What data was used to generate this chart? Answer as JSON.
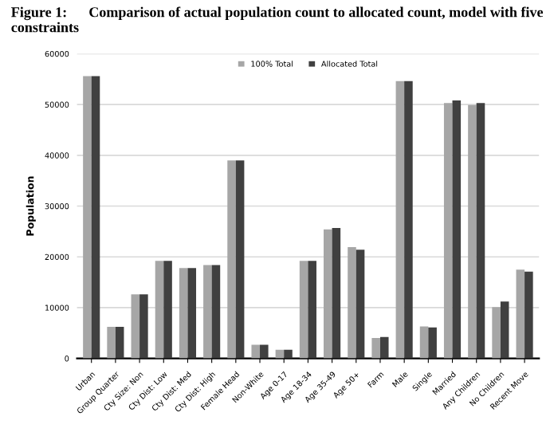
{
  "chart_data": {
    "type": "bar",
    "title": "Figure 1:      Comparison of actual population count to allocated count, model with five constraints",
    "ylabel": "Population",
    "categories": [
      "Urban",
      "Group Quarter",
      "Cty Size: Non",
      "Cty Dist: Low",
      "Cty Dist: Med",
      "Cty Dist: High",
      "Female Head",
      "Non-White",
      "Age 0-17",
      "Age 18-34",
      "Age 35-49",
      "Age 50+",
      "Farm",
      "Male",
      "Single",
      "Married",
      "Any Children",
      "No Children",
      "Recent Move"
    ],
    "series": [
      {
        "name": "100% Total",
        "color": "#a6a6a6",
        "values": [
          55600,
          6200,
          12600,
          19200,
          17800,
          18400,
          39000,
          2700,
          1700,
          19200,
          25400,
          21900,
          4000,
          54600,
          6300,
          50300,
          49900,
          10100,
          17500
        ]
      },
      {
        "name": "Allocated Total",
        "color": "#404040",
        "values": [
          55600,
          6200,
          12600,
          19200,
          17800,
          18400,
          39000,
          2700,
          1700,
          19200,
          25700,
          21400,
          4200,
          54600,
          6100,
          50800,
          50300,
          11200,
          17100
        ]
      }
    ],
    "ylim": [
      0,
      60000
    ],
    "yticks": [
      0,
      10000,
      20000,
      30000,
      40000,
      50000,
      60000
    ],
    "grid": "y",
    "legend": "top"
  }
}
